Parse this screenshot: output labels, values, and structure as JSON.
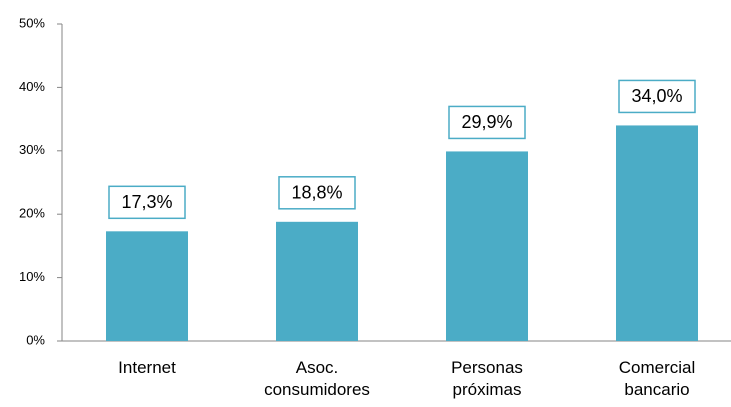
{
  "chart_data": {
    "type": "bar",
    "categories": [
      "Internet",
      "Asoc. consumidores",
      "Personas próximas",
      "Comercial bancario"
    ],
    "values": [
      17.3,
      18.8,
      29.9,
      34.0
    ],
    "value_labels": [
      "17,3%",
      "18,8%",
      "29,9%",
      "34,0%"
    ],
    "color": "#4bacc6",
    "ylim": [
      0,
      50
    ],
    "yticks": [
      {
        "value": 0,
        "label": "0%"
      },
      {
        "value": 10,
        "label": "10%"
      },
      {
        "value": 20,
        "label": "20%"
      },
      {
        "value": 30,
        "label": "30%"
      },
      {
        "value": 40,
        "label": "40%"
      },
      {
        "value": 50,
        "label": "50%"
      }
    ],
    "grid": false
  }
}
